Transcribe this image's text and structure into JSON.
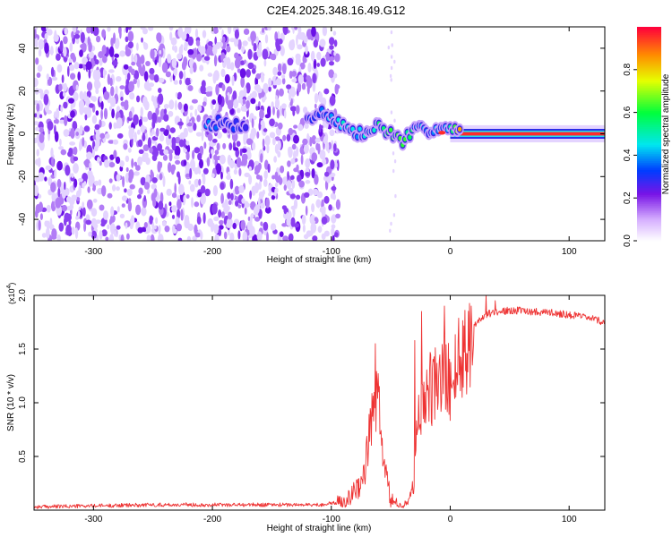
{
  "title": "C2E4.2025.348.16.49.G12",
  "chart_data": [
    {
      "type": "heatmap",
      "name": "spectrogram",
      "xlabel": "Height of straight line (km)",
      "ylabel": "Frequency (Hz)",
      "xlim": [
        -350,
        130
      ],
      "ylim": [
        -50,
        50
      ],
      "x_ticks": [
        -300,
        -200,
        -100,
        0,
        100
      ],
      "y_ticks": [
        -40,
        -20,
        0,
        20,
        40
      ],
      "colorbar": {
        "label": "Normalized spectral amplitude",
        "range": [
          0,
          1
        ],
        "ticks": [
          "0.0",
          "0.2",
          "0.4",
          "0.6",
          "0.8"
        ],
        "tick_values": [
          0,
          0.2,
          0.4,
          0.6,
          0.8
        ]
      },
      "noise_region_x": [
        -350,
        -100
      ],
      "signal_track": {
        "x": [
          -205,
          -195,
          -180,
          -170,
          -120,
          -110,
          -100,
          -90,
          -80,
          -70,
          -60,
          -50,
          -40,
          -30,
          -20,
          -10,
          0,
          10,
          130
        ],
        "freq": [
          5,
          5,
          4,
          5,
          6,
          10,
          8,
          4,
          0,
          0,
          4,
          0,
          -3,
          1,
          2,
          3,
          2,
          0,
          0
        ],
        "amplitude": [
          0.35,
          0.3,
          0.3,
          0.25,
          0.3,
          0.35,
          0.4,
          0.45,
          0.4,
          0.45,
          0.55,
          0.6,
          0.6,
          0.5,
          0.4,
          0.4,
          0.5,
          0.95,
          0.95
        ]
      }
    },
    {
      "type": "line",
      "name": "snr",
      "xlabel": "Height of straight line (km)",
      "ylabel": "SNR (10 * v/v)",
      "y_multiplier": "(x10",
      "y_multiplier_exp": "4",
      "y_multiplier_close": ")",
      "xlim": [
        -350,
        130
      ],
      "ylim": [
        0,
        2.0
      ],
      "x_ticks": [
        -300,
        -200,
        -100,
        0,
        100
      ],
      "y_ticks": [
        "0.5",
        "1.0",
        "1.5",
        "2.0"
      ],
      "y_tick_values": [
        0.5,
        1.0,
        1.5,
        2.0
      ],
      "series": [
        {
          "name": "SNR",
          "color": "#ee3333",
          "x": [
            -350,
            -300,
            -250,
            -200,
            -150,
            -110,
            -95,
            -85,
            -75,
            -70,
            -66,
            -63,
            -60,
            -57,
            -54,
            -50,
            -45,
            -40,
            -35,
            -30,
            -28,
            -25,
            -22,
            -18,
            -12,
            -6,
            0,
            8,
            15,
            22,
            30,
            40,
            55,
            70,
            85,
            100,
            115,
            130
          ],
          "values": [
            0.03,
            0.04,
            0.05,
            0.05,
            0.05,
            0.05,
            0.07,
            0.12,
            0.25,
            0.5,
            0.85,
            1.05,
            0.9,
            0.6,
            0.3,
            0.1,
            0.05,
            0.04,
            0.08,
            0.3,
            0.7,
            0.95,
            1.05,
            1.1,
            1.15,
            1.25,
            1.2,
            1.4,
            1.6,
            1.75,
            1.82,
            1.85,
            1.86,
            1.85,
            1.84,
            1.82,
            1.79,
            1.75
          ],
          "peaks": [
            {
              "x": -63,
              "y": 1.55
            },
            {
              "x": -30,
              "y": 1.58
            },
            {
              "x": -24,
              "y": 1.85
            },
            {
              "x": -5,
              "y": 1.9
            },
            {
              "x": 30,
              "y": 2.0
            },
            {
              "x": 38,
              "y": 1.95
            }
          ]
        }
      ]
    }
  ]
}
